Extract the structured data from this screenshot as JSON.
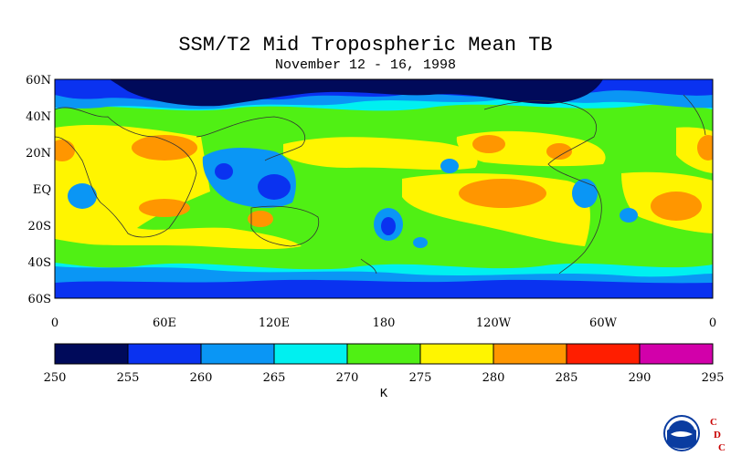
{
  "title": "SSM/T2 Mid Tropospheric Mean TB",
  "subtitle": "November 12 - 16, 1998",
  "axes": {
    "lat_labels": [
      "60N",
      "40N",
      "20N",
      "EQ",
      "20S",
      "40S",
      "60S"
    ],
    "lon_labels": [
      "0",
      "60E",
      "120E",
      "180",
      "120W",
      "60W",
      "0"
    ]
  },
  "colorbar": {
    "ticks": [
      "250",
      "255",
      "260",
      "265",
      "270",
      "275",
      "280",
      "285",
      "290",
      "295"
    ],
    "colors": [
      "#000a5a",
      "#0a32f0",
      "#0a96f5",
      "#00f0f0",
      "#50f014",
      "#fff500",
      "#ff9600",
      "#ff1e00",
      "#d200aa"
    ],
    "unit": "K"
  },
  "map_colors": {
    "cold_deep": "#000a5a",
    "cold": "#0a32f0",
    "cool": "#0a96f5",
    "mild": "#00f0f0",
    "warm": "#50f014",
    "hot": "#fff500",
    "hotter": "#ff9600"
  },
  "logo": {
    "letters": [
      "C",
      "D",
      "C"
    ],
    "letter_color": "#c80000",
    "noaa_blue": "#0a3ca0"
  }
}
